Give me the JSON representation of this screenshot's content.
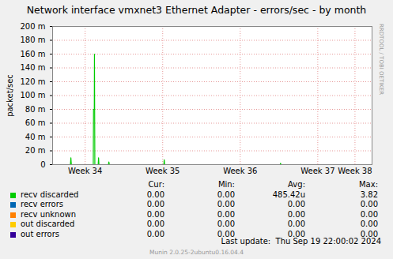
{
  "chart_data": {
    "type": "line",
    "title": "Network interface vmxnet3 Ethernet Adapter - errors/sec - by month",
    "y_label": "packet/sec",
    "x": [
      34.08,
      34.31,
      34.316,
      34.322,
      34.605,
      34.608,
      34.618,
      34.62,
      34.625,
      34.668,
      34.673,
      34.678,
      34.8,
      34.806,
      34.812,
      35.515,
      35.52,
      35.525,
      37.015,
      37.02,
      37.025,
      38.2
    ],
    "xlim": [
      34.08,
      38.2
    ],
    "xticks": [
      {
        "value": 34.5,
        "label": "Week 34"
      },
      {
        "value": 35.5,
        "label": "Week 35"
      },
      {
        "value": 36.5,
        "label": "Week 36"
      },
      {
        "value": 37.5,
        "label": "Week 37"
      },
      {
        "value": 37.98,
        "label": "Week 38"
      }
    ],
    "ylim": [
      0,
      0.2
    ],
    "yticks": [
      0,
      {
        "value": 0.02,
        "label": "20 m"
      },
      {
        "value": 0.04,
        "label": "40 m"
      },
      {
        "value": 0.06,
        "label": "60 m"
      },
      {
        "value": 0.08,
        "label": "80 m"
      },
      {
        "value": 0.1,
        "label": "100 m"
      },
      {
        "value": 0.12,
        "label": "120 m"
      },
      {
        "value": 0.14,
        "label": "140 m"
      },
      {
        "value": 0.16,
        "label": "160 m"
      },
      {
        "value": 0.18,
        "label": "180 m"
      },
      {
        "value": 0.2,
        "label": "200 m"
      }
    ],
    "grid": true,
    "stat_headers": [
      "Cur:",
      "Min:",
      "Avg:",
      "Max:"
    ],
    "series": [
      {
        "name": "recv discarded",
        "color": "#00cc00",
        "values": [
          0,
          0,
          0.01,
          0,
          0,
          0.08,
          0.08,
          0.16,
          0,
          0,
          0.01,
          0,
          0,
          0.004,
          0,
          0,
          0.007,
          0,
          0,
          0.002,
          0,
          0
        ],
        "stats": [
          "0.00",
          "0.00",
          "485.42u",
          "3.82"
        ]
      },
      {
        "name": "recv errors",
        "color": "#0066b3",
        "values": [
          0,
          0,
          0,
          0,
          0,
          0,
          0,
          0,
          0,
          0,
          0,
          0,
          0,
          0,
          0,
          0,
          0,
          0,
          0,
          0,
          0,
          0
        ],
        "stats": [
          "0.00",
          "0.00",
          "0.00",
          "0.00"
        ]
      },
      {
        "name": "recv unknown",
        "color": "#ff8000",
        "values": [
          0,
          0,
          0,
          0,
          0,
          0,
          0,
          0,
          0,
          0,
          0,
          0,
          0,
          0,
          0,
          0,
          0,
          0,
          0,
          0,
          0,
          0
        ],
        "stats": [
          "0.00",
          "0.00",
          "0.00",
          "0.00"
        ]
      },
      {
        "name": "out discarded",
        "color": "#ffcc00",
        "values": [
          0,
          0,
          0,
          0,
          0,
          0,
          0,
          0,
          0,
          0,
          0,
          0,
          0,
          0,
          0,
          0,
          0,
          0,
          0,
          0,
          0,
          0
        ],
        "stats": [
          "0.00",
          "0.00",
          "0.00",
          "0.00"
        ]
      },
      {
        "name": "out errors",
        "color": "#330099",
        "values": [
          0,
          0,
          0,
          0,
          0,
          0,
          0,
          0,
          0,
          0,
          0,
          0,
          0,
          0,
          0,
          0,
          0,
          0,
          0,
          0,
          0,
          0
        ],
        "stats": [
          "0.00",
          "0.00",
          "0.00",
          "0.00"
        ]
      }
    ],
    "last_update": "Last update:  Thu Sep 19 22:00:02 2024",
    "footer": "Munin 2.0.25-2ubuntu0.16.04.4",
    "side_text": "RRDTOOL / TOBI OETIKER"
  }
}
